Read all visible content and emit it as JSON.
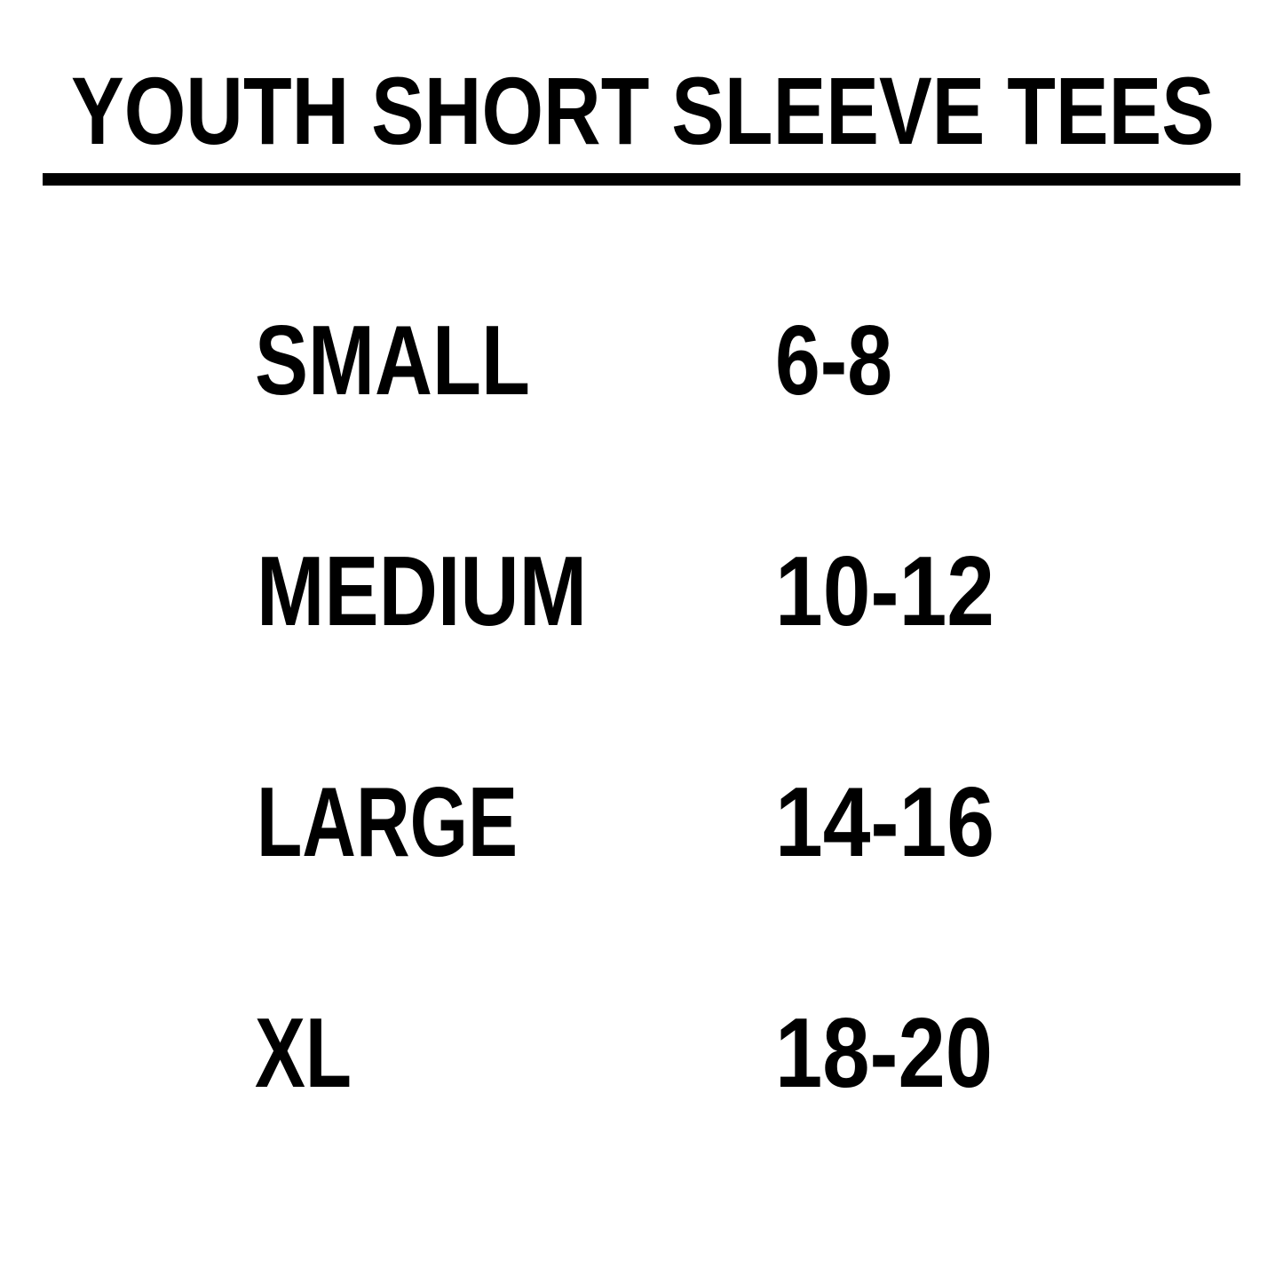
{
  "title": "YOUTH SHORT SLEEVE TEES",
  "colors": {
    "text": "#000000",
    "background": "#ffffff"
  },
  "rows": [
    {
      "size": "SMALL",
      "range": "6-8"
    },
    {
      "size": "MEDIUM",
      "range": "10-12"
    },
    {
      "size": "LARGE",
      "range": "14-16"
    },
    {
      "size": "XL",
      "range": "18-20"
    }
  ]
}
